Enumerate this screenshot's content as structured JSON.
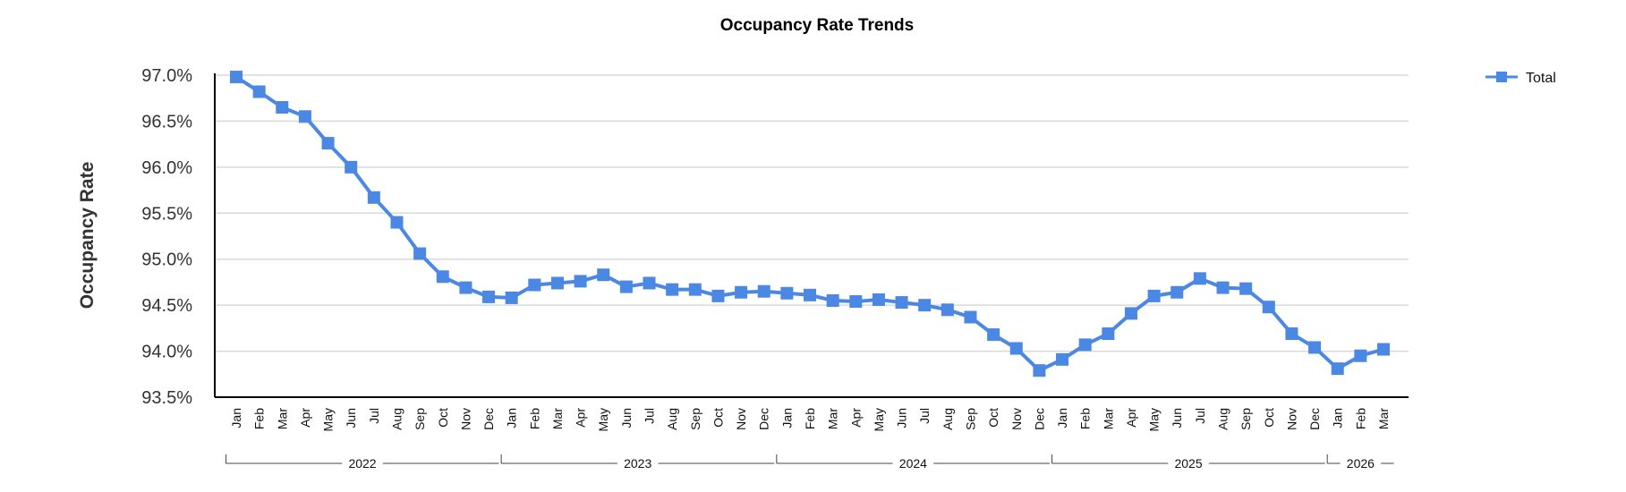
{
  "chart_data": {
    "type": "line",
    "title": "Occupancy Rate Trends",
    "ylabel": "Occupancy Rate",
    "xlabel": "",
    "ylim": [
      93.5,
      97.0
    ],
    "yticks": [
      "97.0%",
      "96.5%",
      "96.0%",
      "95.5%",
      "95.0%",
      "94.5%",
      "94.0%",
      "93.5%"
    ],
    "grid": true,
    "legend_position": "top-right",
    "colors": {
      "series": "#4a88e3",
      "grid": "#d9d9d9",
      "axis": "#000000"
    },
    "groups": [
      {
        "label": "2022",
        "count": 12
      },
      {
        "label": "2023",
        "count": 12
      },
      {
        "label": "2024",
        "count": 12
      },
      {
        "label": "2025",
        "count": 12
      },
      {
        "label": "2026",
        "count": 3
      }
    ],
    "categories": [
      "Jan",
      "Feb",
      "Mar",
      "Apr",
      "May",
      "Jun",
      "Jul",
      "Aug",
      "Sep",
      "Oct",
      "Nov",
      "Dec",
      "Jan",
      "Feb",
      "Mar",
      "Apr",
      "May",
      "Jun",
      "Jul",
      "Aug",
      "Sep",
      "Oct",
      "Nov",
      "Dec",
      "Jan",
      "Feb",
      "Mar",
      "Apr",
      "May",
      "Jun",
      "Jul",
      "Aug",
      "Sep",
      "Oct",
      "Nov",
      "Dec",
      "Jan",
      "Feb",
      "Mar",
      "Apr",
      "May",
      "Jun",
      "Jul",
      "Aug",
      "Sep",
      "Oct",
      "Nov",
      "Dec",
      "Jan",
      "Feb",
      "Mar"
    ],
    "series": [
      {
        "name": "Total",
        "values": [
          96.98,
          96.82,
          96.65,
          96.55,
          96.26,
          96.0,
          95.67,
          95.4,
          95.06,
          94.81,
          94.69,
          94.59,
          94.58,
          94.72,
          94.74,
          94.76,
          94.83,
          94.7,
          94.74,
          94.67,
          94.67,
          94.6,
          94.64,
          94.65,
          94.63,
          94.61,
          94.55,
          94.54,
          94.56,
          94.53,
          94.5,
          94.45,
          94.37,
          94.18,
          94.03,
          93.79,
          93.91,
          94.07,
          94.19,
          94.41,
          94.6,
          94.64,
          94.79,
          94.69,
          94.68,
          94.48,
          94.19,
          94.04,
          93.81,
          93.95,
          94.02
        ]
      }
    ]
  }
}
